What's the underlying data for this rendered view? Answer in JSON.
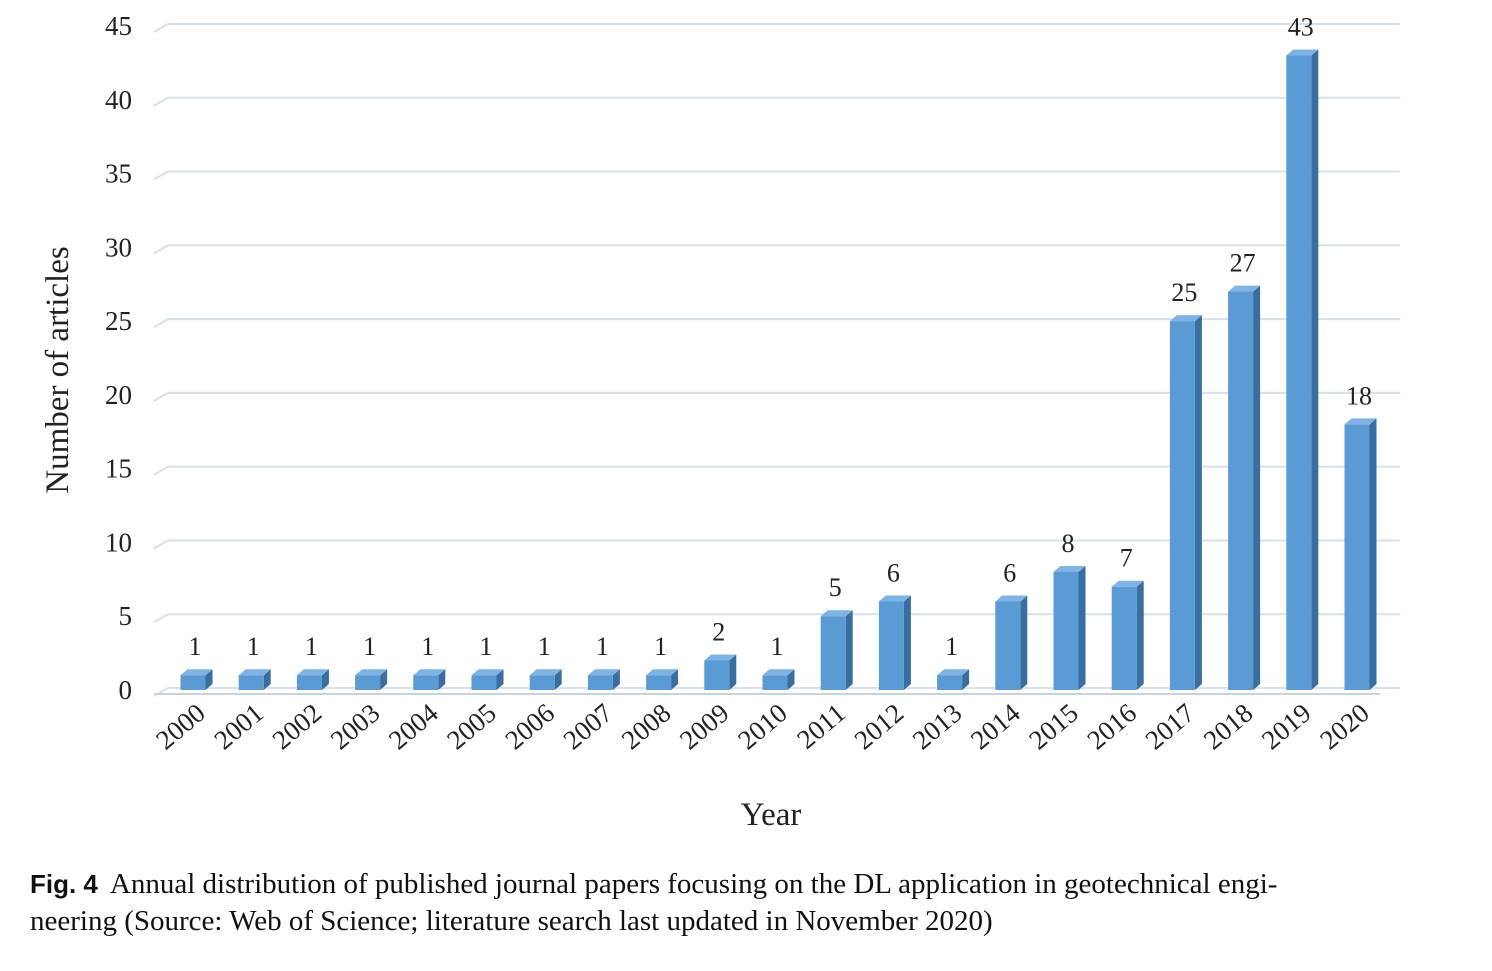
{
  "chart_data": {
    "type": "bar",
    "categories": [
      "2000",
      "2001",
      "2002",
      "2003",
      "2004",
      "2005",
      "2006",
      "2007",
      "2008",
      "2009",
      "2010",
      "2011",
      "2012",
      "2013",
      "2014",
      "2015",
      "2016",
      "2017",
      "2018",
      "2019",
      "2020"
    ],
    "values": [
      1,
      1,
      1,
      1,
      1,
      1,
      1,
      1,
      1,
      2,
      1,
      5,
      6,
      1,
      6,
      8,
      7,
      25,
      27,
      43,
      18
    ],
    "data_labels": [
      "1",
      "1",
      "1",
      "1",
      "1",
      "1",
      "1",
      "1",
      "1",
      "2",
      "1",
      "5",
      "6",
      "1",
      "6",
      "8",
      "7",
      "25",
      "27",
      "43",
      "18"
    ],
    "xlabel": "Year",
    "ylabel": "Number of articles",
    "ylim": [
      0,
      45
    ],
    "yticks": [
      0,
      5,
      10,
      15,
      20,
      25,
      30,
      35,
      40,
      45
    ],
    "grid": true,
    "style": "3d-column",
    "colors": {
      "bar_front": "#5b9bd5",
      "bar_side": "#3a6e9e",
      "bar_top": "#7fb3e3",
      "grid": "#d9e1ea"
    }
  },
  "caption": {
    "label": "Fig. 4",
    "line1": "Annual distribution of published journal papers focusing on the DL application in geotechnical engi-",
    "line2": "neering  (Source: Web of Science; literature search last updated in November 2020)"
  }
}
